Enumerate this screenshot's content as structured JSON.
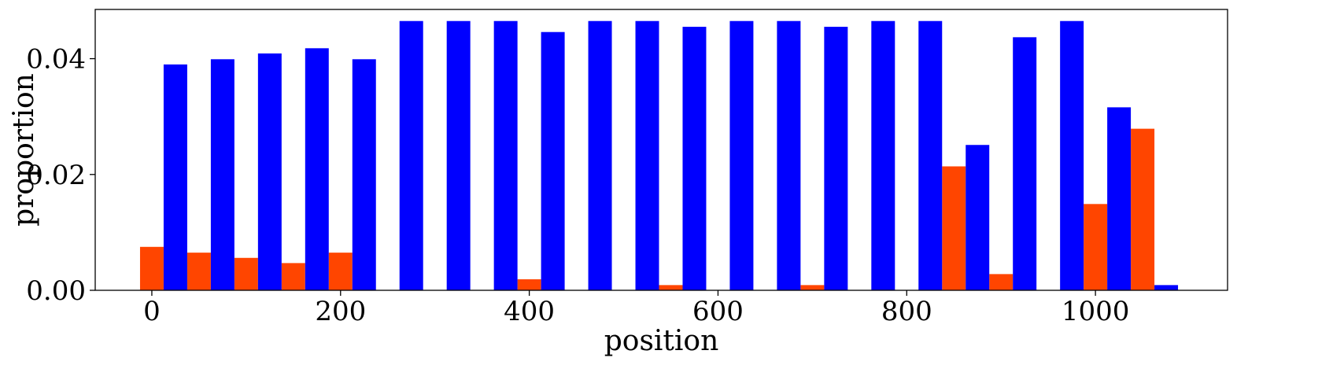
{
  "chart_data": {
    "type": "bar",
    "title": "",
    "xlabel": "position",
    "ylabel": "proportion",
    "xlim": [
      -60,
      1140
    ],
    "ylim": [
      0,
      0.0485
    ],
    "xticks": [
      0,
      200,
      400,
      600,
      800,
      1000
    ],
    "yticks": [
      0,
      0.02,
      0.04
    ],
    "xtick_labels": [
      "0",
      "200",
      "400",
      "600",
      "800",
      "1000"
    ],
    "ytick_labels": [
      "0.00",
      "0.02",
      "0.04"
    ],
    "bin_width": 25,
    "grid": false,
    "legend": "none",
    "series": [
      {
        "color": "#ff4500",
        "x": [
          0,
          50,
          100,
          150,
          200,
          250,
          300,
          350,
          400,
          450,
          500,
          550,
          600,
          650,
          700,
          750,
          800,
          850,
          900,
          950,
          1000,
          1050
        ],
        "values": [
          0.0075,
          0.0065,
          0.0056,
          0.0047,
          0.0065,
          0,
          0,
          0,
          0.0019,
          0,
          0,
          0.0009,
          0,
          0,
          0.0009,
          0,
          0,
          0.0214,
          0.0028,
          0,
          0.0149,
          0.0279
        ]
      },
      {
        "color": "#0000ff",
        "x": [
          25,
          75,
          125,
          175,
          225,
          275,
          325,
          375,
          425,
          475,
          525,
          575,
          625,
          675,
          725,
          775,
          825,
          875,
          925,
          975,
          1025,
          1075
        ],
        "values": [
          0.039,
          0.0399,
          0.0409,
          0.0418,
          0.0399,
          0.0465,
          0.0465,
          0.0465,
          0.0446,
          0.0465,
          0.0465,
          0.0455,
          0.0465,
          0.0465,
          0.0455,
          0.0465,
          0.0465,
          0.0251,
          0.0437,
          0.0465,
          0.0316,
          0.0009
        ]
      }
    ]
  }
}
